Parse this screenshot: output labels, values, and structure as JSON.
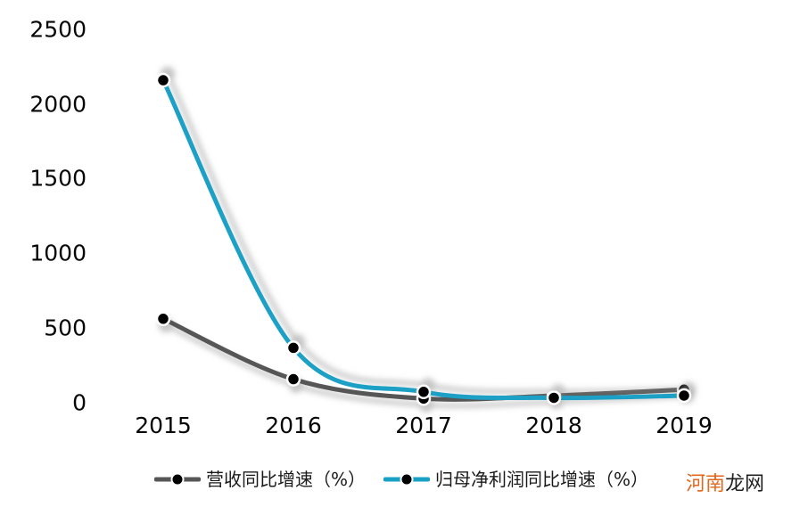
{
  "chart_data": {
    "type": "line",
    "smooth": true,
    "grid": false,
    "axis_lines": false,
    "legend_position": "bottom",
    "title": "",
    "xlabel": "",
    "ylabel": "",
    "categories": [
      "2015",
      "2016",
      "2017",
      "2018",
      "2019"
    ],
    "series": [
      {
        "id": "revenue-growth",
        "name": "营收同比增速（%）",
        "color": "#565656",
        "values": [
          560,
          155,
          25,
          45,
          85
        ]
      },
      {
        "id": "net-profit-growth",
        "name": "归母净利润同比增速（%）",
        "color": "#1BA0C5",
        "values": [
          2160,
          365,
          70,
          30,
          45
        ]
      }
    ],
    "y_ticks": [
      2500,
      2000,
      1500,
      1000,
      500,
      0
    ],
    "ylim": [
      0,
      2500
    ],
    "marker": "filled-circle",
    "marker_color": "#000000",
    "marker_ring_color": "#FFFFFF"
  },
  "watermark": {
    "text_orange": "河南",
    "text_dark": "龙网",
    "color_orange": "#E2671E",
    "color_dark": "#1F1F1F"
  },
  "background_color": "#FFFFFF"
}
